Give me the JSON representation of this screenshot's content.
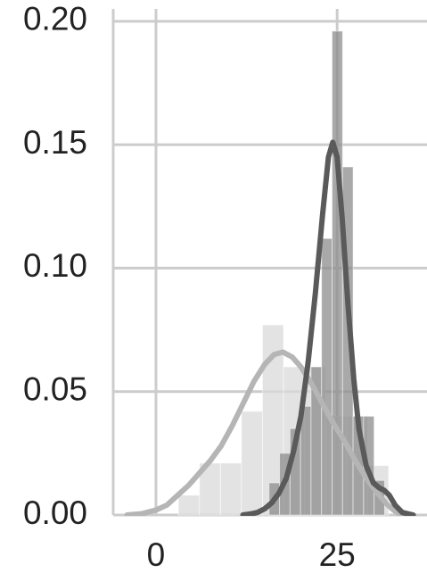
{
  "chart_data": {
    "type": "histogram",
    "xlim": [
      -5.9,
      37.4
    ],
    "ylim": [
      0,
      0.205
    ],
    "xticks": [
      0,
      25
    ],
    "yticks": [
      {
        "value": 0,
        "label": "0.00"
      },
      {
        "value": 0.05,
        "label": "0.05"
      },
      {
        "value": 0.1,
        "label": "0.10"
      },
      {
        "value": 0.15,
        "label": "0.15"
      },
      {
        "value": 0.2,
        "label": "0.20"
      }
    ],
    "grid": true,
    "histograms": [
      {
        "color": "#d9d9d9",
        "bins": [
          3.1,
          6.0,
          8.9,
          11.8,
          14.7,
          17.6,
          20.5,
          23.4,
          26.3,
          29.2,
          32.1
        ],
        "values": [
          0.008,
          0.021,
          0.021,
          0.042,
          0.077,
          0.06,
          0.06,
          0.04,
          0.04,
          0.02
        ]
      },
      {
        "color": "#8c8c8c",
        "bins": [
          15.6,
          17.05,
          18.5,
          19.95,
          21.4,
          22.85,
          24.3,
          25.75,
          27.2,
          28.65,
          30.1,
          31.55
        ],
        "values": [
          0.013,
          0.025,
          0.035,
          0.044,
          0.06,
          0.112,
          0.196,
          0.141,
          0.04,
          0.04,
          0.014
        ]
      }
    ],
    "lines": [
      {
        "color": "#b5b5b5",
        "x": [
          -4,
          -2,
          0,
          1.5,
          3,
          4.5,
          6,
          7.5,
          9,
          10.5,
          12,
          13.5,
          15,
          16.3,
          17.5,
          18.8,
          20,
          21.5,
          23,
          24.5,
          26,
          27.5,
          29,
          30.5,
          32,
          33,
          34
        ],
        "values": [
          0,
          0.0005,
          0.002,
          0.004,
          0.008,
          0.012,
          0.017,
          0.022,
          0.028,
          0.036,
          0.045,
          0.054,
          0.061,
          0.065,
          0.066,
          0.064,
          0.06,
          0.053,
          0.045,
          0.037,
          0.03,
          0.022,
          0.015,
          0.009,
          0.004,
          0.0015,
          0
        ]
      },
      {
        "color": "#5a5a5a",
        "x": [
          12,
          13,
          14,
          15,
          16,
          17,
          18,
          19,
          20,
          21,
          22,
          23,
          23.8,
          24.4,
          25,
          25.7,
          26.5,
          27.3,
          28,
          29,
          30,
          30.8,
          31.5,
          32.2,
          33,
          34,
          35.5
        ],
        "values": [
          0,
          0.0004,
          0.001,
          0.0025,
          0.005,
          0.009,
          0.015,
          0.026,
          0.04,
          0.062,
          0.09,
          0.122,
          0.145,
          0.151,
          0.145,
          0.12,
          0.085,
          0.055,
          0.035,
          0.02,
          0.013,
          0.011,
          0.01,
          0.008,
          0.004,
          0.001,
          0
        ]
      }
    ]
  }
}
